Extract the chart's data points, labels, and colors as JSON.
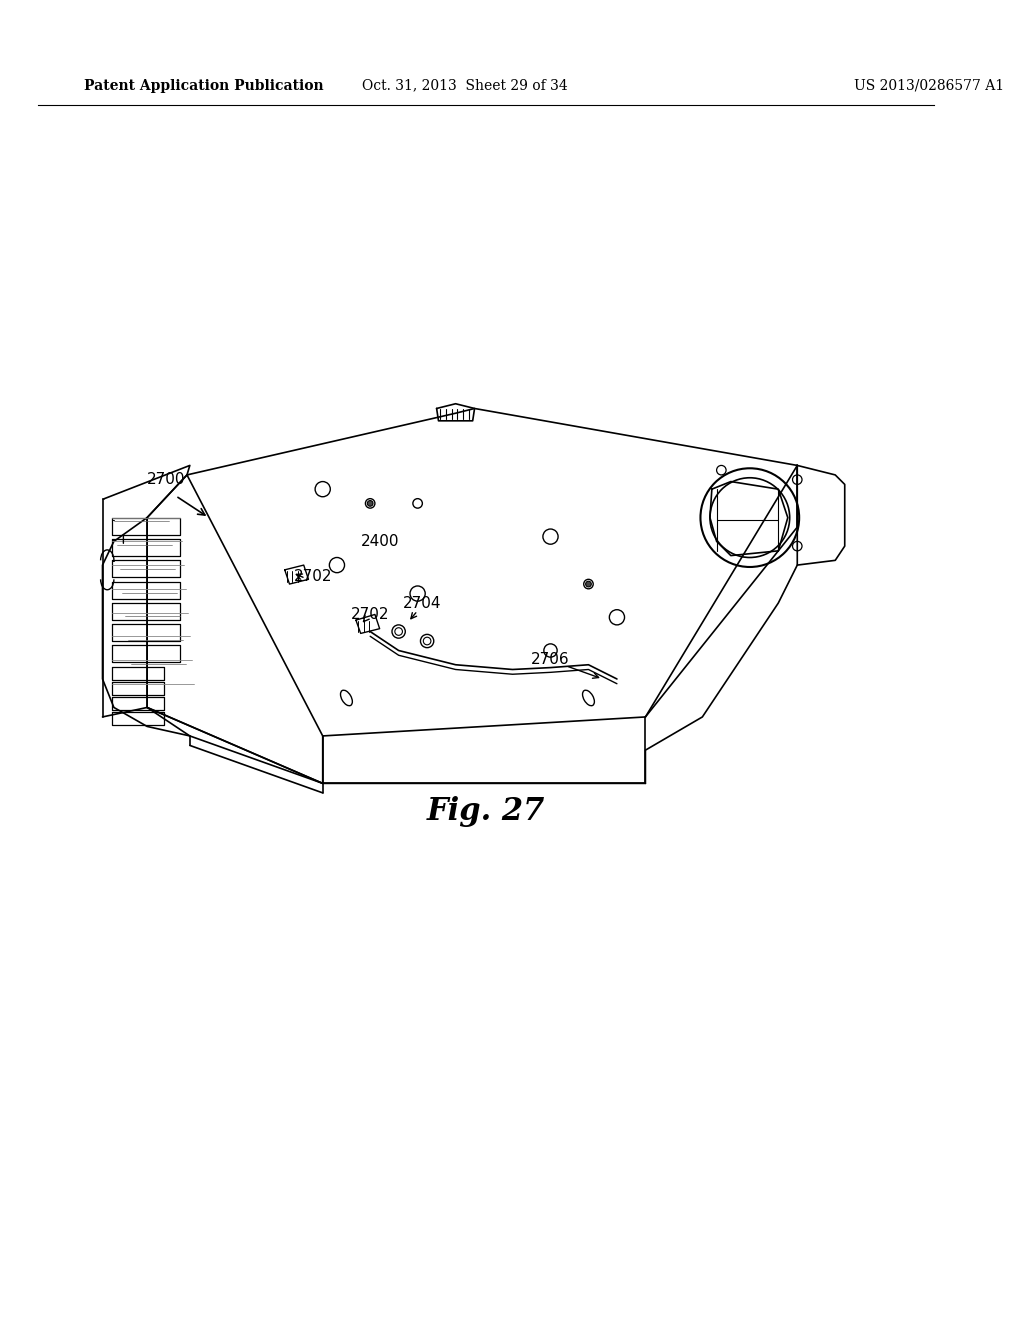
{
  "title": "Fig. 27",
  "header_left": "Patent Application Publication",
  "header_center": "Oct. 31, 2013  Sheet 29 of 34",
  "header_right": "US 2013/0286577 A1",
  "bg_color": "#ffffff",
  "label_2700": "2700",
  "label_2400": "2400",
  "label_2702a": "2702",
  "label_2702b": "2702",
  "label_2704": "2704",
  "label_2706": "2706",
  "fig_label": "Fig. 27",
  "line_color": "#000000",
  "line_width": 1.2
}
